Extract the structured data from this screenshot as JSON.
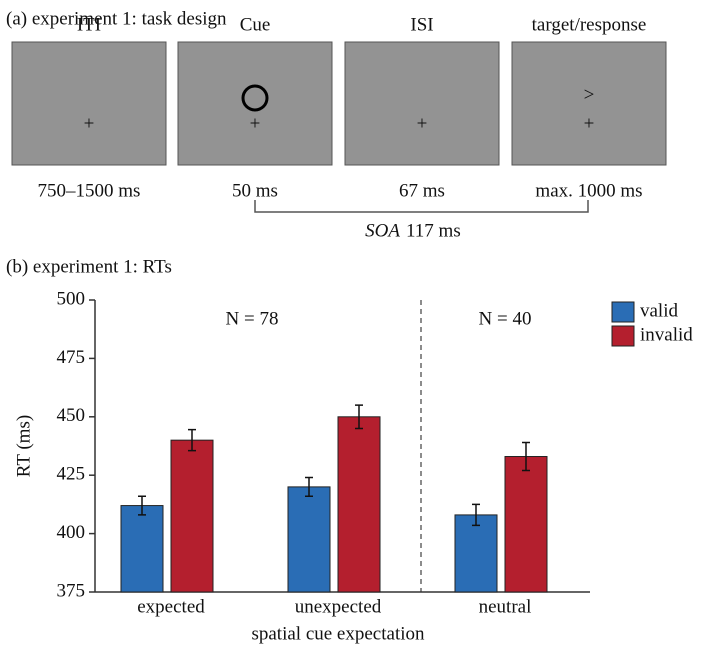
{
  "task_design": {
    "title": "(a) experiment 1: task design",
    "frames": [
      {
        "name": "ITI",
        "duration": "750–1500 ms",
        "fixation": "+"
      },
      {
        "name": "Cue",
        "duration": "50 ms",
        "fixation": "+"
      },
      {
        "name": "ISI",
        "duration": "67 ms",
        "fixation": "+"
      },
      {
        "name": "target/response",
        "duration": "max. 1000 ms",
        "fixation": "+",
        "target": ">"
      }
    ],
    "soa": {
      "label": "SOA",
      "value": "117 ms"
    }
  },
  "chart_data": {
    "type": "bar",
    "title": "(b) experiment 1: RTs",
    "categories": [
      "expected",
      "unexpected",
      "neutral"
    ],
    "series": [
      {
        "name": "valid",
        "color": "#2a6db5",
        "values": [
          412,
          420,
          408
        ],
        "errors": [
          4,
          4,
          4.5
        ]
      },
      {
        "name": "invalid",
        "color": "#b41f2e",
        "values": [
          440,
          450,
          433
        ],
        "errors": [
          4.5,
          5,
          6
        ]
      }
    ],
    "ylim": [
      375,
      500
    ],
    "yticks": [
      375,
      400,
      425,
      450,
      475,
      500
    ],
    "xlabel": "spatial cue expectation",
    "ylabel": "RT (ms)",
    "annotations": [
      "N = 78",
      "N = 40"
    ],
    "legend": "right",
    "grid": false
  }
}
